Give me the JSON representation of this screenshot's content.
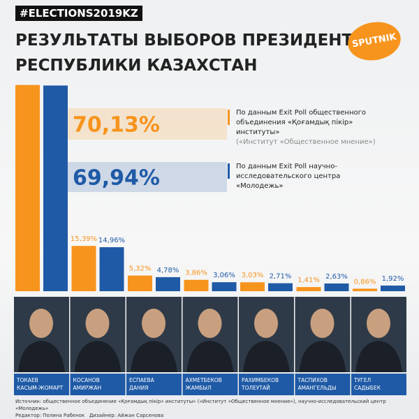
{
  "chart_data": {
    "type": "bar",
    "hashtag": "#ELECTIONS2019KZ",
    "title": "РЕЗУЛЬТАТЫ ВЫБОРОВ ПРЕЗИДЕНТА\nРЕСПУБЛИКИ КАЗАХСТАН",
    "logo": "SPUTNIK",
    "categories": [
      "ТОКАЕВ\nКАСЫМ-ЖОМАРТ",
      "КОСАНОВ\nАМИРЖАН",
      "ЕСПАЕВА\nДАНИЯ",
      "АХМЕТБЕКОВ\nЖАМБЫЛ",
      "РАХИМБЕКОВ\nТОЛЕУТАЙ",
      "ТАСПИХОВ\nАМАНГЕЛЬДЫ",
      "ТУГЕЛ\nСАДЫБЕК"
    ],
    "series": [
      {
        "name": "По данным Exit Poll общественного объединения «Қоғамдық пікір» институты»",
        "name_note": "(«Институт «Общественное мнение»)",
        "color": "#f7941d",
        "values": [
          70.13,
          15.39,
          5.32,
          3.86,
          3.03,
          1.41,
          0.86
        ],
        "value_labels": [
          "70,13%",
          "15,39%",
          "5,32%",
          "3,86%",
          "3,03%",
          "1,41%",
          "0,86%"
        ]
      },
      {
        "name": "По данным Exit Poll научно-исследовательского центра «Молодежь»",
        "color": "#1f5aa6",
        "values": [
          69.94,
          14.96,
          4.78,
          3.06,
          2.71,
          2.63,
          1.92
        ],
        "value_labels": [
          "69,94%",
          "14,96%",
          "4,78%",
          "3,06%",
          "2,71%",
          "2,63%",
          "1,92%"
        ]
      }
    ],
    "ylim": [
      0,
      71
    ],
    "source": "Источник: общественное объединение «Қоғамдық пікір» институты» («Институт «Общественное мнение»), научно-исследовательский центр «Молодежь»",
    "credits": "Редактор: Полина Рабенок   Дизайнер: Айжан Сарсенова"
  }
}
